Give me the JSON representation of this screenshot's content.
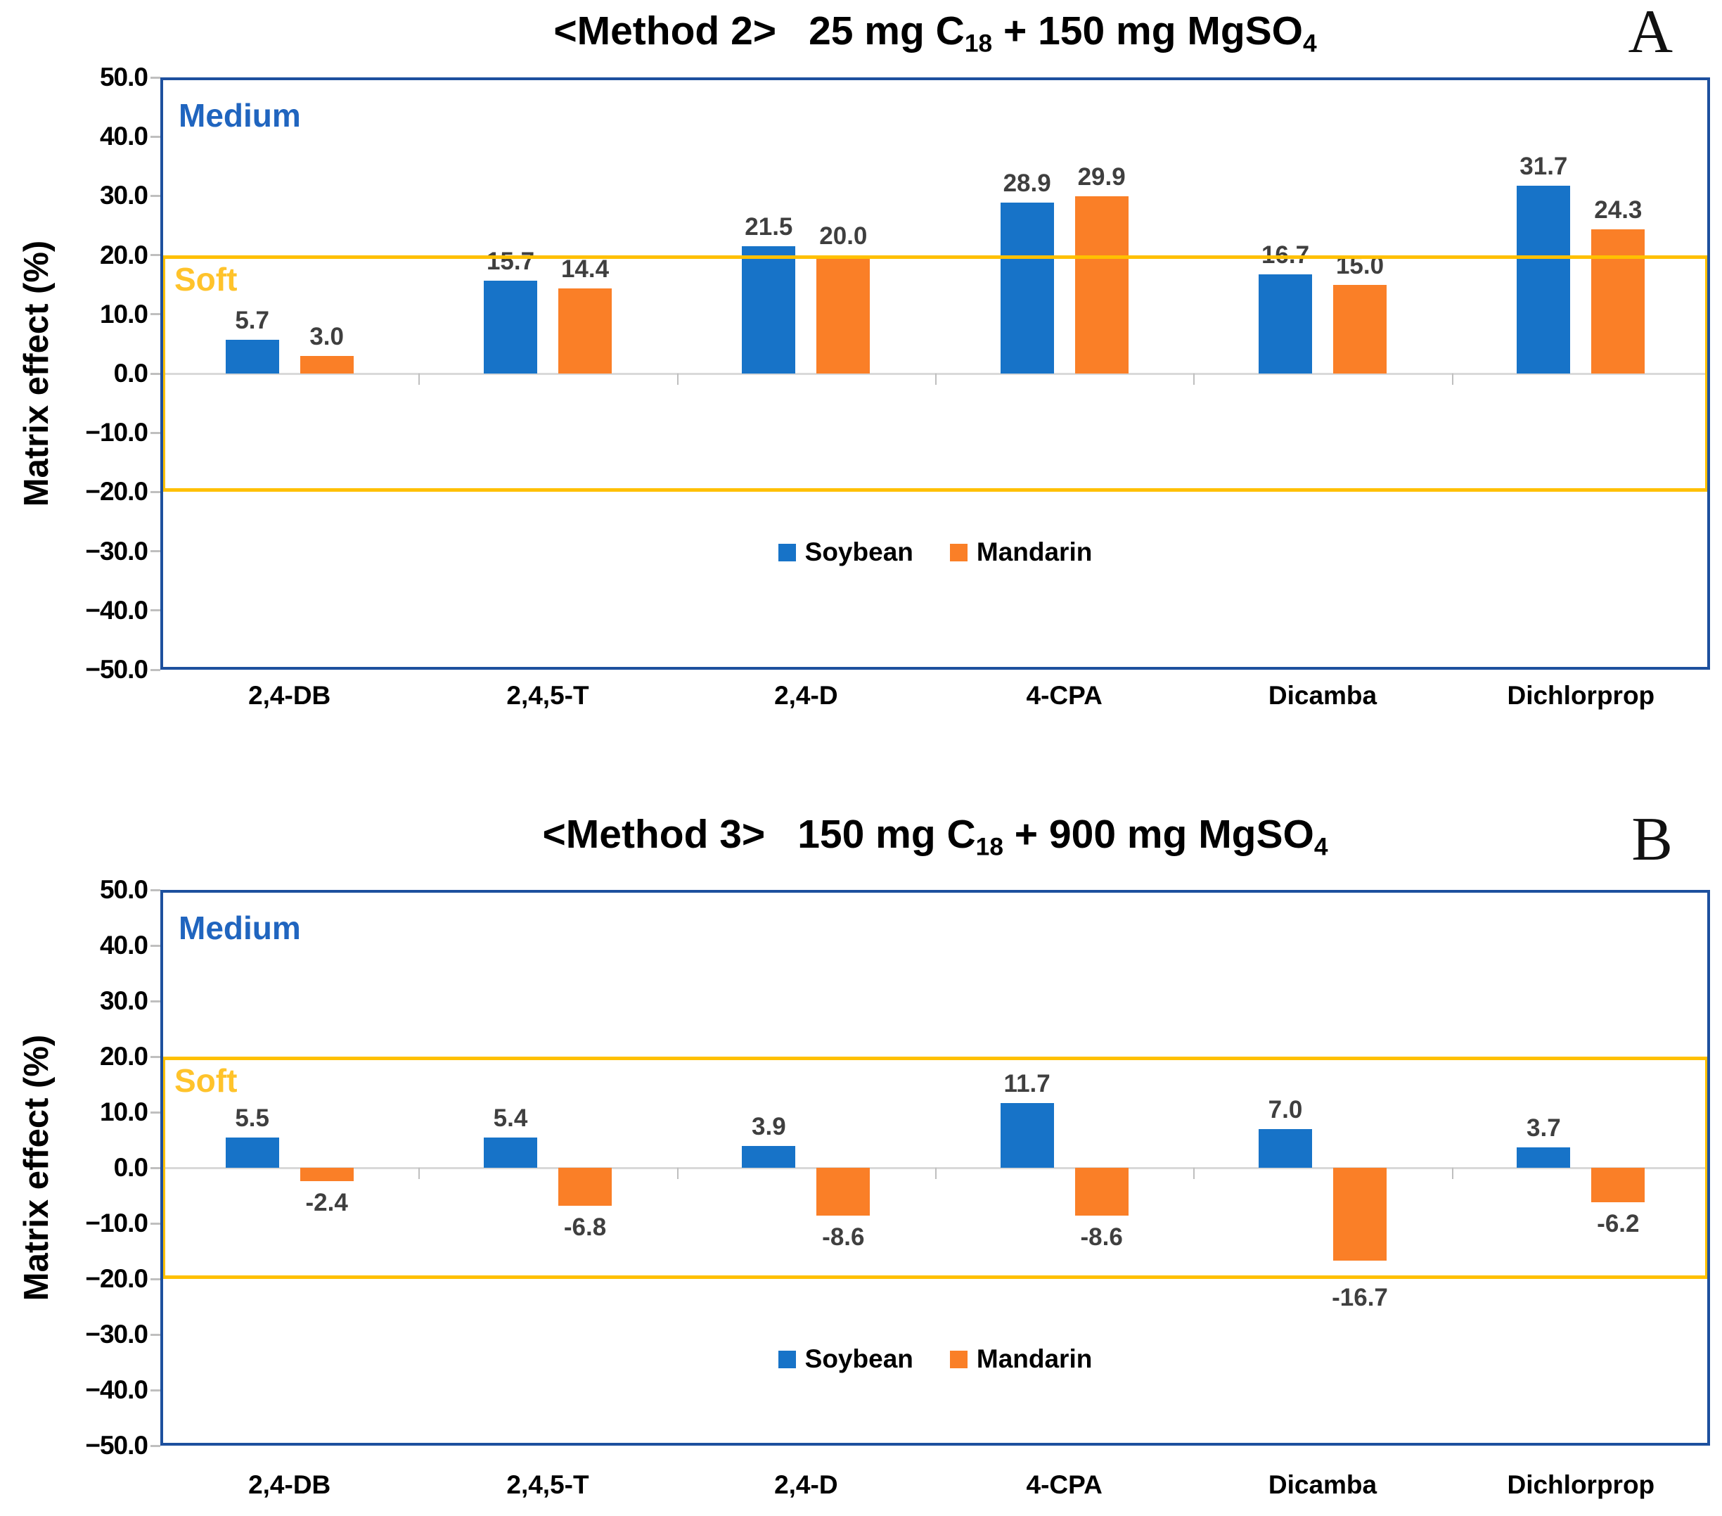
{
  "figure": {
    "colors": {
      "soybean": "#1773c8",
      "mandarin": "#fa7f27",
      "soft_line": "#ffc000",
      "plot_border": "#1d509e",
      "medium_text": "#2065bf",
      "soft_text": "#ffc32b",
      "value_label": "#3f3f3f",
      "zero_gridline": "#d9d9d9"
    },
    "panels": [
      {
        "corner_label": "A",
        "title": {
          "method": "<Method 2>",
          "formula_parts": [
            {
              "text": "25 mg C"
            },
            {
              "sub": "18"
            },
            {
              "text": " + 150 mg MgSO"
            },
            {
              "sub": "4"
            }
          ]
        },
        "region_labels": {
          "medium": "Medium",
          "soft": "Soft"
        },
        "chart_data": {
          "type": "bar",
          "title": "<Method 2> 25 mg C18 + 150 mg MgSO4",
          "categories": [
            "2,4-DB",
            "2,4,5-T",
            "2,4-D",
            "4-CPA",
            "Dicamba",
            "Dichlorprop"
          ],
          "series": [
            {
              "name": "Soybean",
              "color": "#1773c8",
              "values": [
                5.7,
                15.7,
                21.5,
                28.9,
                16.7,
                31.7
              ]
            },
            {
              "name": "Mandarin",
              "color": "#fa7f27",
              "values": [
                3.0,
                14.4,
                20.0,
                29.9,
                15.0,
                24.3
              ]
            }
          ],
          "xlabel": "",
          "ylabel": "Matrix effect (%)",
          "ylim": [
            -50,
            50
          ],
          "ytick_labels": [
            "50.0",
            "40.0",
            "30.0",
            "20.0",
            "10.0",
            "0.0",
            "−10.0",
            "−20.0",
            "−30.0",
            "−40.0",
            "−50.0"
          ],
          "soft_band": [
            -20,
            20
          ],
          "grid": "zero-line-only",
          "legend_position": "inside-bottom"
        }
      },
      {
        "corner_label": "B",
        "title": {
          "method": "<Method 3>",
          "formula_parts": [
            {
              "text": "150 mg C"
            },
            {
              "sub": "18"
            },
            {
              "text": " + 900 mg MgSO"
            },
            {
              "sub": "4"
            }
          ]
        },
        "region_labels": {
          "medium": "Medium",
          "soft": "Soft"
        },
        "chart_data": {
          "type": "bar",
          "title": "<Method 3> 150 mg C18 + 900 mg MgSO4",
          "categories": [
            "2,4-DB",
            "2,4,5-T",
            "2,4-D",
            "4-CPA",
            "Dicamba",
            "Dichlorprop"
          ],
          "series": [
            {
              "name": "Soybean",
              "color": "#1773c8",
              "values": [
                5.5,
                5.4,
                3.9,
                11.7,
                7.0,
                3.7
              ]
            },
            {
              "name": "Mandarin",
              "color": "#fa7f27",
              "values": [
                -2.4,
                -6.8,
                -8.6,
                -8.6,
                -16.7,
                -6.2
              ]
            }
          ],
          "xlabel": "",
          "ylabel": "Matrix effect (%)",
          "ylim": [
            -50,
            50
          ],
          "ytick_labels": [
            "50.0",
            "40.0",
            "30.0",
            "20.0",
            "10.0",
            "0.0",
            "−10.0",
            "−20.0",
            "−30.0",
            "−40.0",
            "−50.0"
          ],
          "soft_band": [
            -20,
            20
          ],
          "grid": "zero-line-only",
          "legend_position": "inside-bottom"
        }
      }
    ]
  }
}
